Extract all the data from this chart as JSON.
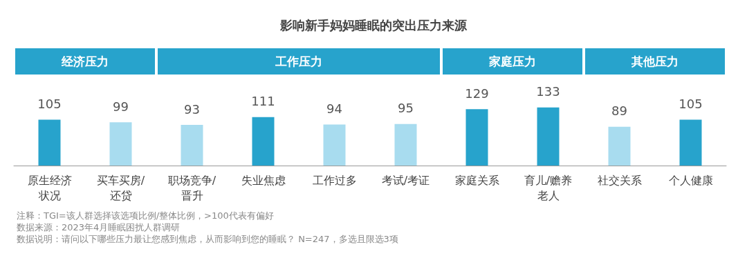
{
  "chart_data": {
    "type": "bar",
    "title": "影响新手妈妈睡眠的突出压力来源",
    "categories": [
      "原生经济状况",
      "买车买房/还贷",
      "职场竞争/晋升",
      "失业焦虑",
      "工作过多",
      "考试/考证",
      "家庭关系",
      "育儿/赡养老人",
      "社交关系",
      "个人健康"
    ],
    "values": [
      105,
      99,
      93,
      111,
      94,
      95,
      129,
      133,
      89,
      105
    ],
    "colors": [
      "#27a3cc",
      "#a8dcef",
      "#a8dcef",
      "#27a3cc",
      "#a8dcef",
      "#a8dcef",
      "#27a3cc",
      "#27a3cc",
      "#a8dcef",
      "#27a3cc"
    ],
    "data_labels": true,
    "annotations": [
      "经济压力",
      "工作压力",
      "家庭压力",
      "其他压力",
      "注释：TGI=该人群选择该选项比例/整体比例，>100代表有偏好",
      "数据来源：2023年4月睡眠困扰人群调研",
      "数据说明：请问以下哪些压力最让您感到焦虑，从而影响到您的睡眠？ N=247，多选且限选3项"
    ]
  }
}
